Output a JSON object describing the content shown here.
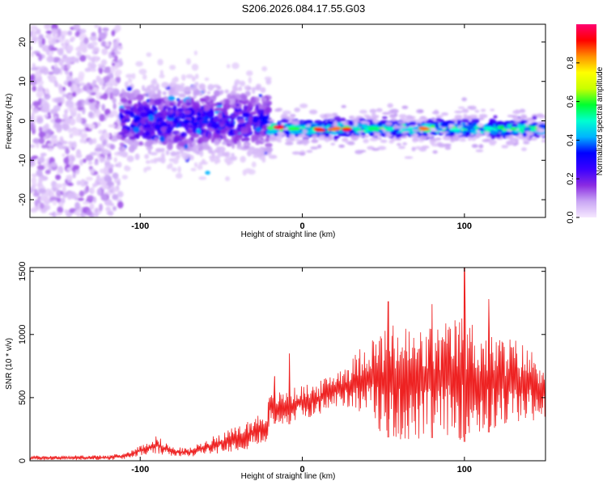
{
  "title": "S206.2026.084.17.55.G03",
  "chart_data": [
    {
      "type": "heatmap",
      "xlabel": "Height of straight line (km)",
      "ylabel": "Frequency (Hz)",
      "xlim": [
        -168,
        150
      ],
      "ylim": [
        -24.5,
        24.5
      ],
      "xticks": [
        -100,
        0,
        100
      ],
      "yticks": [
        -20,
        -10,
        0,
        10,
        20
      ],
      "colorbar": {
        "label": "Normalized spectral amplitude",
        "range": [
          0,
          1
        ],
        "ticks": [
          "0.0",
          "0.2",
          "0.4",
          "0.6",
          "0.8"
        ],
        "tick_values": [
          0,
          0.2,
          0.4,
          0.6,
          0.8
        ],
        "colors": [
          "#f6e8ff",
          "#c9a6f4",
          "#8a2be2",
          "#3a00ff",
          "#0000ff",
          "#00b4ff",
          "#00ffd0",
          "#00ff30",
          "#c8ff00",
          "#ffff00",
          "#ff9000",
          "#ff0000",
          "#ff0070"
        ]
      },
      "bands": [
        {
          "name": "noise",
          "x": [
            -168,
            -112
          ],
          "center_hz": 0,
          "spread_hz": 24,
          "amplitude": 0.08
        },
        {
          "name": "onset",
          "x": [
            -112,
            -20
          ],
          "center_hz": 0,
          "spread_hz": 7,
          "amplitude": 0.2
        },
        {
          "name": "signal",
          "x": [
            -20,
            150
          ],
          "center_hz": -2,
          "spread_hz": 1.5,
          "amplitude": 0.45
        }
      ],
      "ridge_points": [
        {
          "x": -15,
          "y": -1.6,
          "v": 0.95
        },
        {
          "x": 10,
          "y": -2.2,
          "v": 0.9
        },
        {
          "x": 20,
          "y": -2.0,
          "v": 0.85
        },
        {
          "x": 28,
          "y": -2.1,
          "v": 0.9
        },
        {
          "x": 75,
          "y": -2.0,
          "v": 0.85
        },
        {
          "x": -5,
          "y": -2.0,
          "v": 0.6
        },
        {
          "x": 45,
          "y": -2.0,
          "v": 0.55
        },
        {
          "x": 95,
          "y": -2.1,
          "v": 0.5
        },
        {
          "x": 115,
          "y": -2.0,
          "v": 0.5
        }
      ]
    },
    {
      "type": "line",
      "xlabel": "Height of straight line (km)",
      "ylabel": "SNR (10 * v/v)",
      "xlim": [
        -168,
        150
      ],
      "ylim": [
        0,
        1530
      ],
      "xticks": [
        -100,
        0,
        100
      ],
      "yticks": [
        0,
        500,
        1000,
        1500
      ],
      "series": [
        {
          "name": "SNR",
          "color": "#ee2222",
          "envelope": [
            {
              "x": -168,
              "low": 5,
              "high": 40
            },
            {
              "x": -120,
              "low": 5,
              "high": 45
            },
            {
              "x": -110,
              "low": 10,
              "high": 60
            },
            {
              "x": -100,
              "low": 40,
              "high": 120
            },
            {
              "x": -90,
              "low": 50,
              "high": 200
            },
            {
              "x": -80,
              "low": 30,
              "high": 110
            },
            {
              "x": -70,
              "low": 30,
              "high": 100
            },
            {
              "x": -60,
              "low": 50,
              "high": 160
            },
            {
              "x": -50,
              "low": 60,
              "high": 230
            },
            {
              "x": -40,
              "low": 80,
              "high": 270
            },
            {
              "x": -30,
              "low": 100,
              "high": 350
            },
            {
              "x": -22,
              "low": 120,
              "high": 420
            },
            {
              "x": -20,
              "low": 300,
              "high": 530
            },
            {
              "x": -10,
              "low": 280,
              "high": 560
            },
            {
              "x": 0,
              "low": 330,
              "high": 600
            },
            {
              "x": 10,
              "low": 360,
              "high": 620
            },
            {
              "x": 20,
              "low": 420,
              "high": 720
            },
            {
              "x": 30,
              "low": 420,
              "high": 800
            },
            {
              "x": 40,
              "low": 350,
              "high": 980
            },
            {
              "x": 50,
              "low": 200,
              "high": 1050
            },
            {
              "x": 60,
              "low": 150,
              "high": 1100
            },
            {
              "x": 70,
              "low": 150,
              "high": 1050
            },
            {
              "x": 80,
              "low": 180,
              "high": 1080
            },
            {
              "x": 90,
              "low": 200,
              "high": 1100
            },
            {
              "x": 100,
              "low": 150,
              "high": 1180
            },
            {
              "x": 110,
              "low": 200,
              "high": 1050
            },
            {
              "x": 120,
              "low": 250,
              "high": 1000
            },
            {
              "x": 130,
              "low": 280,
              "high": 980
            },
            {
              "x": 140,
              "low": 300,
              "high": 900
            },
            {
              "x": 150,
              "low": 350,
              "high": 800
            }
          ],
          "peaks": [
            {
              "x": -17,
              "y": 670
            },
            {
              "x": -8,
              "y": 850
            },
            {
              "x": 100,
              "y": 1530
            },
            {
              "x": 115,
              "y": 1280
            },
            {
              "x": 53,
              "y": 1260
            },
            {
              "x": 80,
              "y": 1240
            }
          ]
        }
      ]
    }
  ]
}
